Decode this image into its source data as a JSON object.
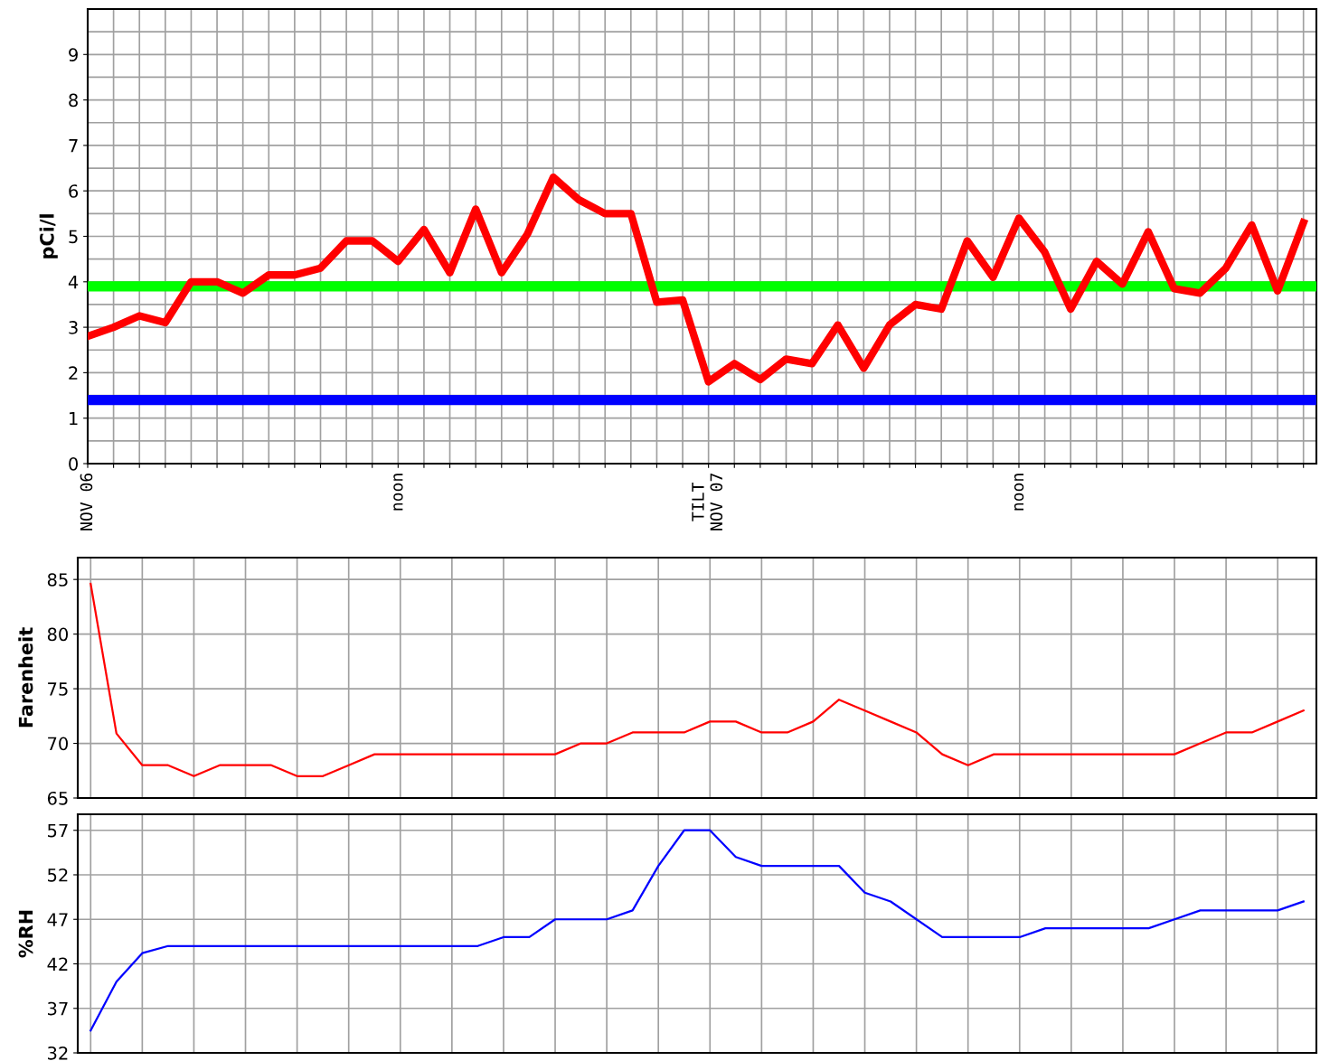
{
  "chart_data": [
    {
      "type": "line",
      "ylabel": "pCi/l",
      "grid": true,
      "categories": [
        "NOV 06",
        null,
        null,
        null,
        null,
        null,
        null,
        null,
        null,
        null,
        null,
        null,
        "noon",
        null,
        null,
        null,
        null,
        null,
        null,
        null,
        null,
        null,
        null,
        null,
        "TILT\nNOV 07",
        null,
        null,
        null,
        null,
        null,
        null,
        null,
        null,
        null,
        null,
        null,
        "noon",
        null,
        null,
        null,
        null,
        null,
        null,
        null,
        null,
        null,
        null,
        null
      ],
      "series": [
        {
          "color": "#ff0000",
          "values": [
            2.8,
            3.0,
            3.25,
            3.1,
            4.0,
            4.0,
            3.75,
            4.15,
            4.15,
            4.3,
            4.9,
            4.9,
            4.45,
            5.15,
            4.2,
            5.6,
            4.2,
            5.05,
            6.3,
            5.8,
            5.5,
            5.5,
            3.55,
            3.6,
            1.8,
            2.2,
            1.85,
            2.3,
            2.2,
            3.05,
            2.1,
            3.05,
            3.5,
            3.4,
            4.9,
            4.1,
            5.4,
            4.65,
            3.4,
            4.45,
            3.95,
            5.1,
            3.85,
            3.75,
            4.3,
            5.25,
            3.8,
            5.3
          ]
        }
      ],
      "ref_lines": [
        {
          "axis": "y",
          "value": 3.9,
          "color": "#00ff00"
        },
        {
          "axis": "y",
          "value": 1.4,
          "color": "#0000ff"
        }
      ],
      "ylim": [
        0,
        10
      ],
      "yticks": [
        0,
        1,
        2,
        3,
        4,
        5,
        6,
        7,
        8,
        9
      ]
    },
    {
      "type": "line",
      "ylabel": "Farenheit",
      "grid": true,
      "categories": [
        null,
        null,
        null,
        null,
        null,
        null,
        null,
        null,
        null,
        null,
        null,
        null,
        null,
        null,
        null,
        null,
        null,
        null,
        null,
        null,
        null,
        null,
        null,
        null,
        null,
        null,
        null,
        null,
        null,
        null,
        null,
        null,
        null,
        null,
        null,
        null,
        null,
        null,
        null,
        null,
        null,
        null,
        null,
        null,
        null,
        null,
        null,
        null
      ],
      "series": [
        {
          "color": "#ff0000",
          "values": [
            84.6,
            70.9,
            68,
            68,
            67,
            68,
            68,
            68,
            67,
            67,
            68,
            69,
            69,
            69,
            69,
            69,
            69,
            69,
            69,
            70,
            70,
            71,
            71,
            71,
            72,
            72,
            71,
            71,
            72,
            74,
            73,
            72,
            71,
            69,
            68,
            69,
            69,
            69,
            69,
            69,
            69,
            69,
            69,
            70,
            71,
            71,
            72,
            73
          ]
        }
      ],
      "ylim": [
        65,
        87
      ],
      "yticks": [
        65,
        70,
        75,
        80,
        85
      ]
    },
    {
      "type": "line",
      "ylabel": "%RH",
      "grid": true,
      "categories": [
        null,
        null,
        null,
        null,
        null,
        null,
        null,
        null,
        null,
        null,
        null,
        null,
        null,
        null,
        null,
        null,
        null,
        null,
        null,
        null,
        null,
        null,
        null,
        null,
        null,
        null,
        null,
        null,
        null,
        null,
        null,
        null,
        null,
        null,
        null,
        null,
        null,
        null,
        null,
        null,
        null,
        null,
        null,
        null,
        null,
        null,
        null,
        null
      ],
      "series": [
        {
          "color": "#0000ff",
          "values": [
            34.5,
            40,
            43.2,
            44,
            44,
            44,
            44,
            44,
            44,
            44,
            44,
            44,
            44,
            44,
            44,
            44,
            45,
            45,
            47,
            47,
            47,
            48,
            53,
            57,
            57,
            54,
            53,
            53,
            53,
            53,
            50,
            49,
            47,
            45,
            45,
            45,
            45,
            46,
            46,
            46,
            46,
            46,
            47,
            48,
            48,
            48,
            48,
            49
          ]
        }
      ],
      "ylim": [
        32,
        58.8
      ],
      "yticks": [
        32,
        37,
        42,
        47,
        52,
        57
      ]
    }
  ]
}
